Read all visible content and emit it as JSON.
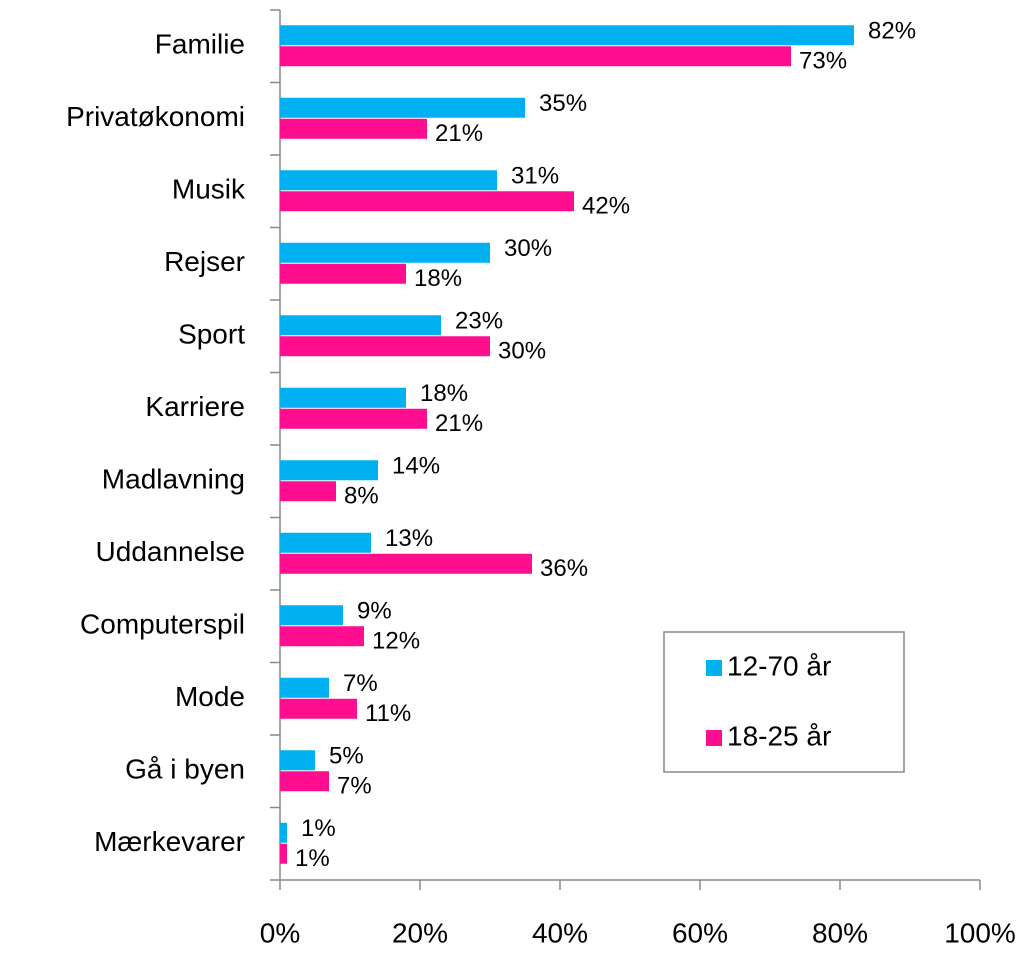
{
  "chart_data": {
    "type": "bar",
    "orientation": "horizontal",
    "categories": [
      "Familie",
      "Privatøkonomi",
      "Musik",
      "Rejser",
      "Sport",
      "Karriere",
      "Madlavning",
      "Uddannelse",
      "Computerspil",
      "Mode",
      "Gå i byen",
      "Mærkevarer"
    ],
    "series": [
      {
        "name": "12-70 år",
        "color": "#00b0f0",
        "values": [
          82,
          35,
          31,
          30,
          23,
          18,
          14,
          13,
          9,
          7,
          5,
          1
        ],
        "value_labels": [
          "82%",
          "35%",
          "31%",
          "30%",
          "23%",
          "18%",
          "14%",
          "13%",
          "9%",
          "7%",
          "5%",
          "1%"
        ]
      },
      {
        "name": "18-25 år",
        "color": "#ff0f8f",
        "values": [
          73,
          21,
          42,
          18,
          30,
          21,
          8,
          36,
          12,
          11,
          7,
          1
        ],
        "value_labels": [
          "73%",
          "21%",
          "42%",
          "18%",
          "30%",
          "21%",
          "8%",
          "36%",
          "12%",
          "11%",
          "7%",
          "1%"
        ]
      }
    ],
    "xlim": [
      0,
      100
    ],
    "xticks": [
      {
        "value": 0,
        "label": "0%"
      },
      {
        "value": 20,
        "label": "20%"
      },
      {
        "value": 40,
        "label": "40%"
      },
      {
        "value": 60,
        "label": "60%"
      },
      {
        "value": 80,
        "label": "80%"
      },
      {
        "value": 100,
        "label": "100%"
      }
    ],
    "legend": "lower right"
  }
}
